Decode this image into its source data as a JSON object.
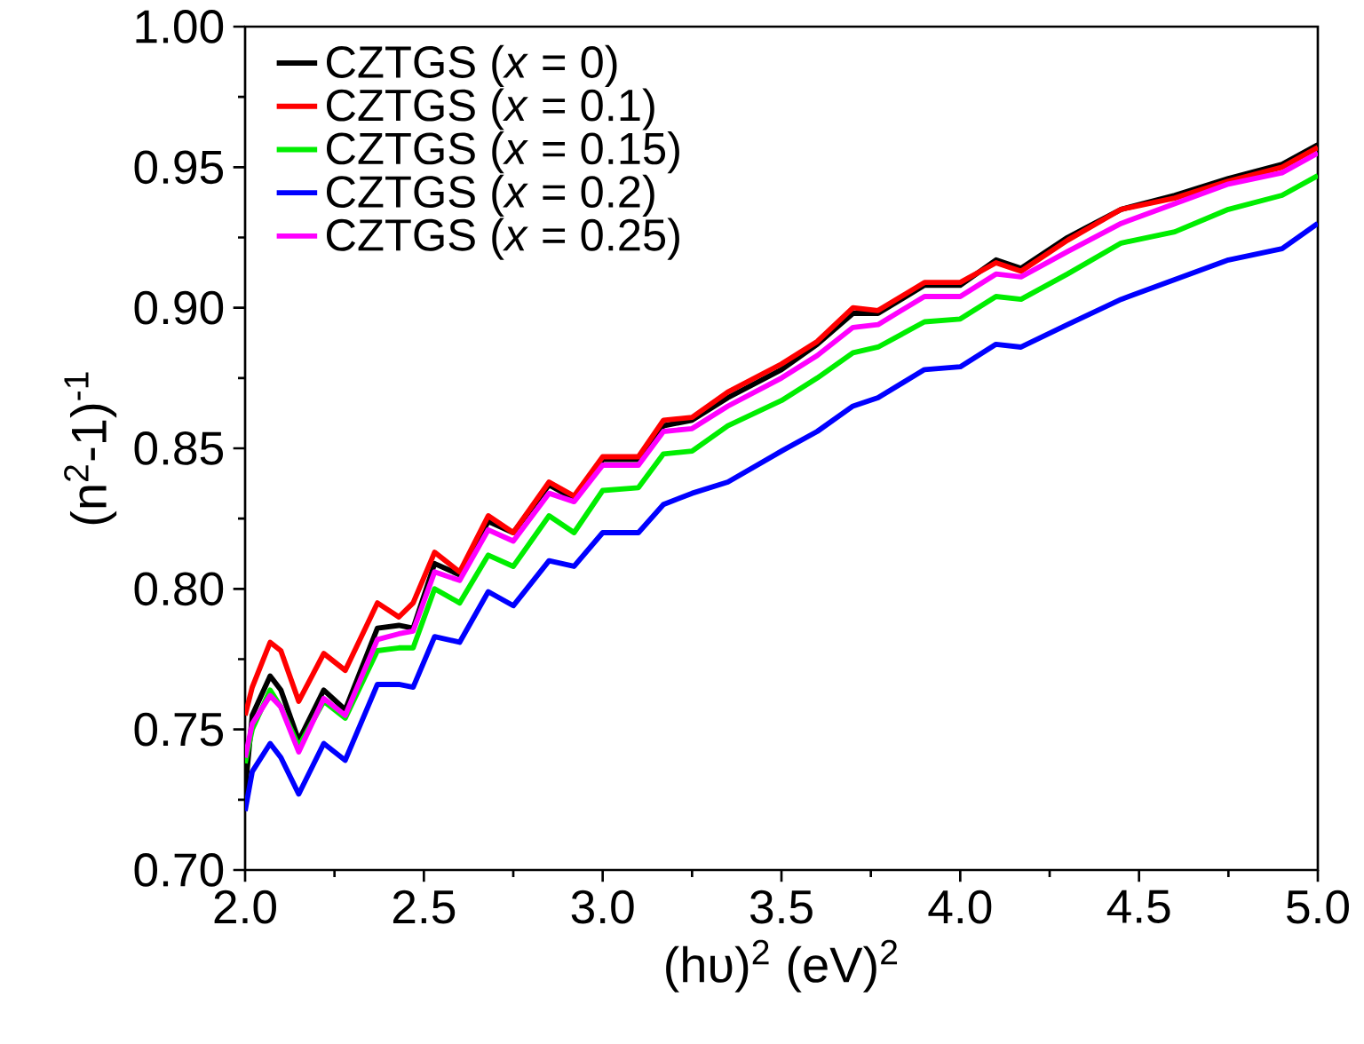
{
  "chart_data": {
    "type": "line",
    "xlabel": "(hυ)$^{2}$ (eV)$^{2}$",
    "ylabel": "(n$^{2}$-1)$^{-1}$",
    "x": [
      2.0,
      2.02,
      2.07,
      2.1,
      2.15,
      2.22,
      2.28,
      2.37,
      2.43,
      2.47,
      2.53,
      2.6,
      2.68,
      2.75,
      2.85,
      2.92,
      3.0,
      3.1,
      3.17,
      3.25,
      3.35,
      3.5,
      3.6,
      3.7,
      3.77,
      3.9,
      4.0,
      4.1,
      4.17,
      4.3,
      4.45,
      4.6,
      4.75,
      4.9,
      5.0
    ],
    "series": [
      {
        "name": "CZTGS (*x* = 0)",
        "color": "#000000",
        "values": [
          0.728,
          0.755,
          0.769,
          0.764,
          0.746,
          0.764,
          0.757,
          0.786,
          0.787,
          0.786,
          0.809,
          0.805,
          0.824,
          0.82,
          0.837,
          0.832,
          0.846,
          0.846,
          0.858,
          0.86,
          0.868,
          0.878,
          0.887,
          0.898,
          0.898,
          0.908,
          0.908,
          0.917,
          0.914,
          0.925,
          0.935,
          0.94,
          0.946,
          0.951,
          0.958
        ]
      },
      {
        "name": "CZTGS (*x* = 0.1)",
        "color": "#ff0000",
        "values": [
          0.755,
          0.765,
          0.781,
          0.778,
          0.76,
          0.777,
          0.771,
          0.795,
          0.79,
          0.795,
          0.813,
          0.806,
          0.826,
          0.82,
          0.838,
          0.833,
          0.847,
          0.847,
          0.86,
          0.861,
          0.87,
          0.88,
          0.888,
          0.9,
          0.899,
          0.909,
          0.909,
          0.916,
          0.913,
          0.924,
          0.935,
          0.939,
          0.945,
          0.95,
          0.957
        ]
      },
      {
        "name": "CZTGS (*x* = 0.15)",
        "color": "#00ee00",
        "values": [
          0.738,
          0.75,
          0.764,
          0.758,
          0.744,
          0.76,
          0.754,
          0.778,
          0.779,
          0.779,
          0.8,
          0.795,
          0.812,
          0.808,
          0.826,
          0.82,
          0.835,
          0.836,
          0.848,
          0.849,
          0.858,
          0.867,
          0.875,
          0.884,
          0.886,
          0.895,
          0.896,
          0.904,
          0.903,
          0.912,
          0.923,
          0.927,
          0.935,
          0.94,
          0.947
        ]
      },
      {
        "name": "CZTGS (*x* = 0.2)",
        "color": "#0000ff",
        "values": [
          0.721,
          0.735,
          0.745,
          0.74,
          0.727,
          0.745,
          0.739,
          0.766,
          0.766,
          0.765,
          0.783,
          0.781,
          0.799,
          0.794,
          0.81,
          0.808,
          0.82,
          0.82,
          0.83,
          0.834,
          0.838,
          0.849,
          0.856,
          0.865,
          0.868,
          0.878,
          0.879,
          0.887,
          0.886,
          0.894,
          0.903,
          0.91,
          0.917,
          0.921,
          0.93
        ]
      },
      {
        "name": "CZTGS (*x* = 0.25)",
        "color": "#ff00ff",
        "values": [
          0.74,
          0.752,
          0.762,
          0.758,
          0.742,
          0.761,
          0.755,
          0.782,
          0.784,
          0.785,
          0.806,
          0.803,
          0.821,
          0.817,
          0.834,
          0.831,
          0.844,
          0.844,
          0.856,
          0.857,
          0.865,
          0.875,
          0.883,
          0.893,
          0.894,
          0.904,
          0.904,
          0.912,
          0.911,
          0.92,
          0.93,
          0.937,
          0.944,
          0.948,
          0.955
        ]
      }
    ],
    "xlim": [
      2.0,
      5.0
    ],
    "ylim": [
      0.7,
      1.0
    ],
    "xticks": [
      {
        "value": 2.0,
        "label": "2.0"
      },
      {
        "value": 2.5,
        "label": "2.5"
      },
      {
        "value": 3.0,
        "label": "3.0"
      },
      {
        "value": 3.5,
        "label": "3.5"
      },
      {
        "value": 4.0,
        "label": "4.0"
      },
      {
        "value": 4.5,
        "label": "4.5"
      },
      {
        "value": 5.0,
        "label": "5.0"
      }
    ],
    "yticks": [
      {
        "value": 0.7,
        "label": "0.70"
      },
      {
        "value": 0.75,
        "label": "0.75"
      },
      {
        "value": 0.8,
        "label": "0.80"
      },
      {
        "value": 0.85,
        "label": "0.85"
      },
      {
        "value": 0.9,
        "label": "0.90"
      },
      {
        "value": 0.95,
        "label": "0.95"
      },
      {
        "value": 1.0,
        "label": "1.00"
      }
    ],
    "grid": false,
    "legend": "top left",
    "marker": "none",
    "line_style": "solid"
  }
}
